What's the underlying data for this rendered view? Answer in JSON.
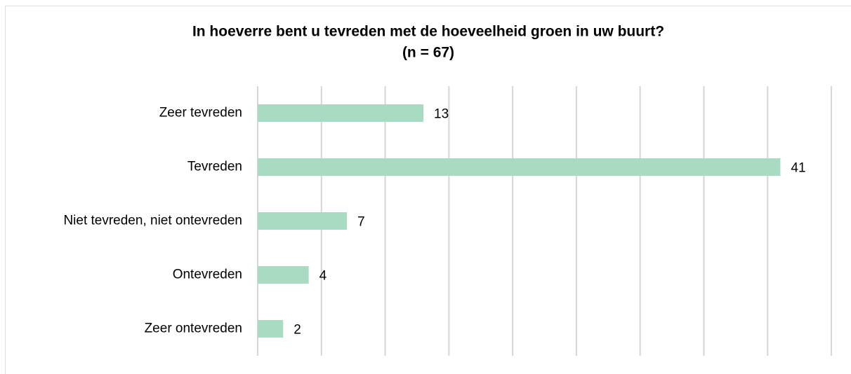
{
  "chart_data": {
    "type": "barh",
    "title": "In hoeverre bent u tevreden met de hoeveelheid groen in uw buurt?",
    "subtitle": "(n = 67)",
    "categories": [
      "Zeer tevreden",
      "Tevreden",
      "Niet tevreden, niet ontevreden",
      "Ontevreden",
      "Zeer ontevreden"
    ],
    "values": [
      13,
      41,
      7,
      4,
      2
    ],
    "color": "#a8dbc1",
    "xlim": [
      0,
      45
    ],
    "xticks": [
      0,
      5,
      10,
      15,
      20,
      25,
      30,
      35,
      40,
      45
    ],
    "grid": true
  }
}
